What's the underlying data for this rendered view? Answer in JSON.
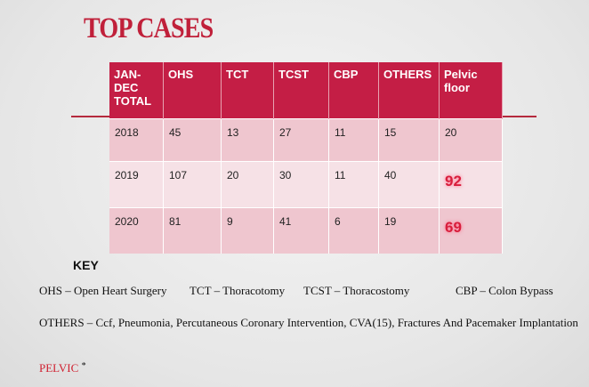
{
  "title": "TOP CASES",
  "table": {
    "header": [
      "JAN- DEC TOTAL",
      "OHS",
      "TCT",
      "TCST",
      "CBP",
      "OTHERS",
      "Pelvic floor"
    ],
    "rows": [
      [
        "2018",
        "45",
        "13",
        "27",
        "11",
        "15",
        "20"
      ],
      [
        "2019",
        "107",
        "20",
        "30",
        "11",
        "40",
        "92"
      ],
      [
        "2020",
        "81",
        "9",
        "41",
        "6",
        "19",
        "69"
      ]
    ]
  },
  "key": {
    "title": "KEY",
    "items": [
      "OHS – Open Heart Surgery",
      "TCT – Thoracotomy",
      "TCST – Thoracostomy",
      "CBP – Colon Bypass"
    ],
    "others": "OTHERS – Ccf, Pneumonia, Percutaneous Coronary Intervention, CVA(15), Fractures And Pacemaker Implantation",
    "pelvic": {
      "label": "PELVIC",
      "mark": "*"
    }
  }
}
